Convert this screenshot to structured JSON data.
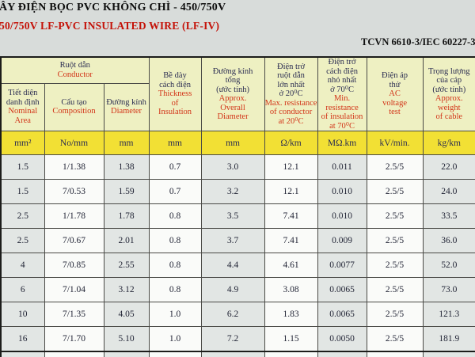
{
  "header": {
    "title_vi": "ÂY ĐIỆN BỌC PVC KHÔNG CHÌ - 450/750V",
    "title_en": "50/750V LF-PVC INSULATED WIRE (LF-IV)",
    "standard": "TCVN 6610-3/IEC 60227-3"
  },
  "table": {
    "conductor_group": {
      "vi": "Ruột dẫn",
      "en": "Conductor"
    },
    "columns": [
      {
        "vi": "Tiết diện\ndanh định",
        "en": "Nominal\nArea"
      },
      {
        "vi": "Cấu tạo",
        "en": "Composition"
      },
      {
        "vi": "Đường kính",
        "en": "Diameter"
      },
      {
        "vi": "Bề dày\ncách điện",
        "en": "Thickness\nof\nInsulation"
      },
      {
        "vi": "Đường kính\ntổng\n(ước tính)",
        "en": "Approx.\nOverall\nDiameter"
      },
      {
        "vi": "Điện trở\nruột dẫn\nlớn nhất\nở 20⁰C",
        "en": "Max. resistance\nof conductor\nat 20⁰C"
      },
      {
        "vi": "Điện trở\ncách điện\nnhỏ nhất\nở 70⁰C",
        "en": "Min.\nresistance\nof insulation\nat 70⁰C"
      },
      {
        "vi": "Điện áp\nthử",
        "en": "AC\nvoltage\ntest"
      },
      {
        "vi": "Trọng lượng\ncủa cáp\n(ước tính)",
        "en": "Approx.\nweight\nof cable"
      }
    ],
    "units": [
      "mm²",
      "No/mm",
      "mm",
      "mm",
      "mm",
      "Ω/km",
      "MΩ.km",
      "kV/min.",
      "kg/km"
    ],
    "rows": [
      [
        "1.5",
        "1/1.38",
        "1.38",
        "0.7",
        "3.0",
        "12.1",
        "0.011",
        "2.5/5",
        "22.0"
      ],
      [
        "1.5",
        "7/0.53",
        "1.59",
        "0.7",
        "3.2",
        "12.1",
        "0.010",
        "2.5/5",
        "24.0"
      ],
      [
        "2.5",
        "1/1.78",
        "1.78",
        "0.8",
        "3.5",
        "7.41",
        "0.010",
        "2.5/5",
        "33.5"
      ],
      [
        "2.5",
        "7/0.67",
        "2.01",
        "0.8",
        "3.7",
        "7.41",
        "0.009",
        "2.5/5",
        "36.0"
      ],
      [
        "4",
        "7/0.85",
        "2.55",
        "0.8",
        "4.4",
        "4.61",
        "0.0077",
        "2.5/5",
        "52.0"
      ],
      [
        "6",
        "7/1.04",
        "3.12",
        "0.8",
        "4.9",
        "3.08",
        "0.0065",
        "2.5/5",
        "73.0"
      ],
      [
        "10",
        "7/1.35",
        "4.05",
        "1.0",
        "6.2",
        "1.83",
        "0.0065",
        "2.5/5",
        "121.3"
      ],
      [
        "16",
        "7/1.70",
        "5.10",
        "1.0",
        "7.2",
        "1.15",
        "0.0050",
        "2.5/5",
        "181.9"
      ]
    ]
  },
  "colors": {
    "page_bg": "#d8dcda",
    "header_bg": "#eef0c2",
    "units_bg": "#f2e034",
    "accent_red": "#d23418",
    "text_navy": "#2b2d52"
  }
}
